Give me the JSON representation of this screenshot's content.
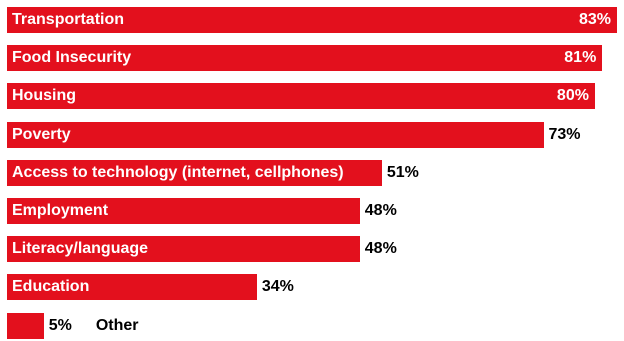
{
  "chart_data": {
    "type": "bar",
    "orientation": "horizontal",
    "categories": [
      "Transportation",
      "Food Insecurity",
      "Housing",
      "Poverty",
      "Access to technology (internet, cellphones)",
      "Employment",
      "Literacy/language",
      "Education",
      "Other"
    ],
    "values": [
      83,
      81,
      80,
      73,
      51,
      48,
      48,
      34,
      5
    ],
    "value_labels": [
      "83%",
      "81%",
      "80%",
      "73%",
      "51%",
      "48%",
      "48%",
      "34%",
      "5%"
    ],
    "bar_color": "#e3101d",
    "grid": false
  }
}
